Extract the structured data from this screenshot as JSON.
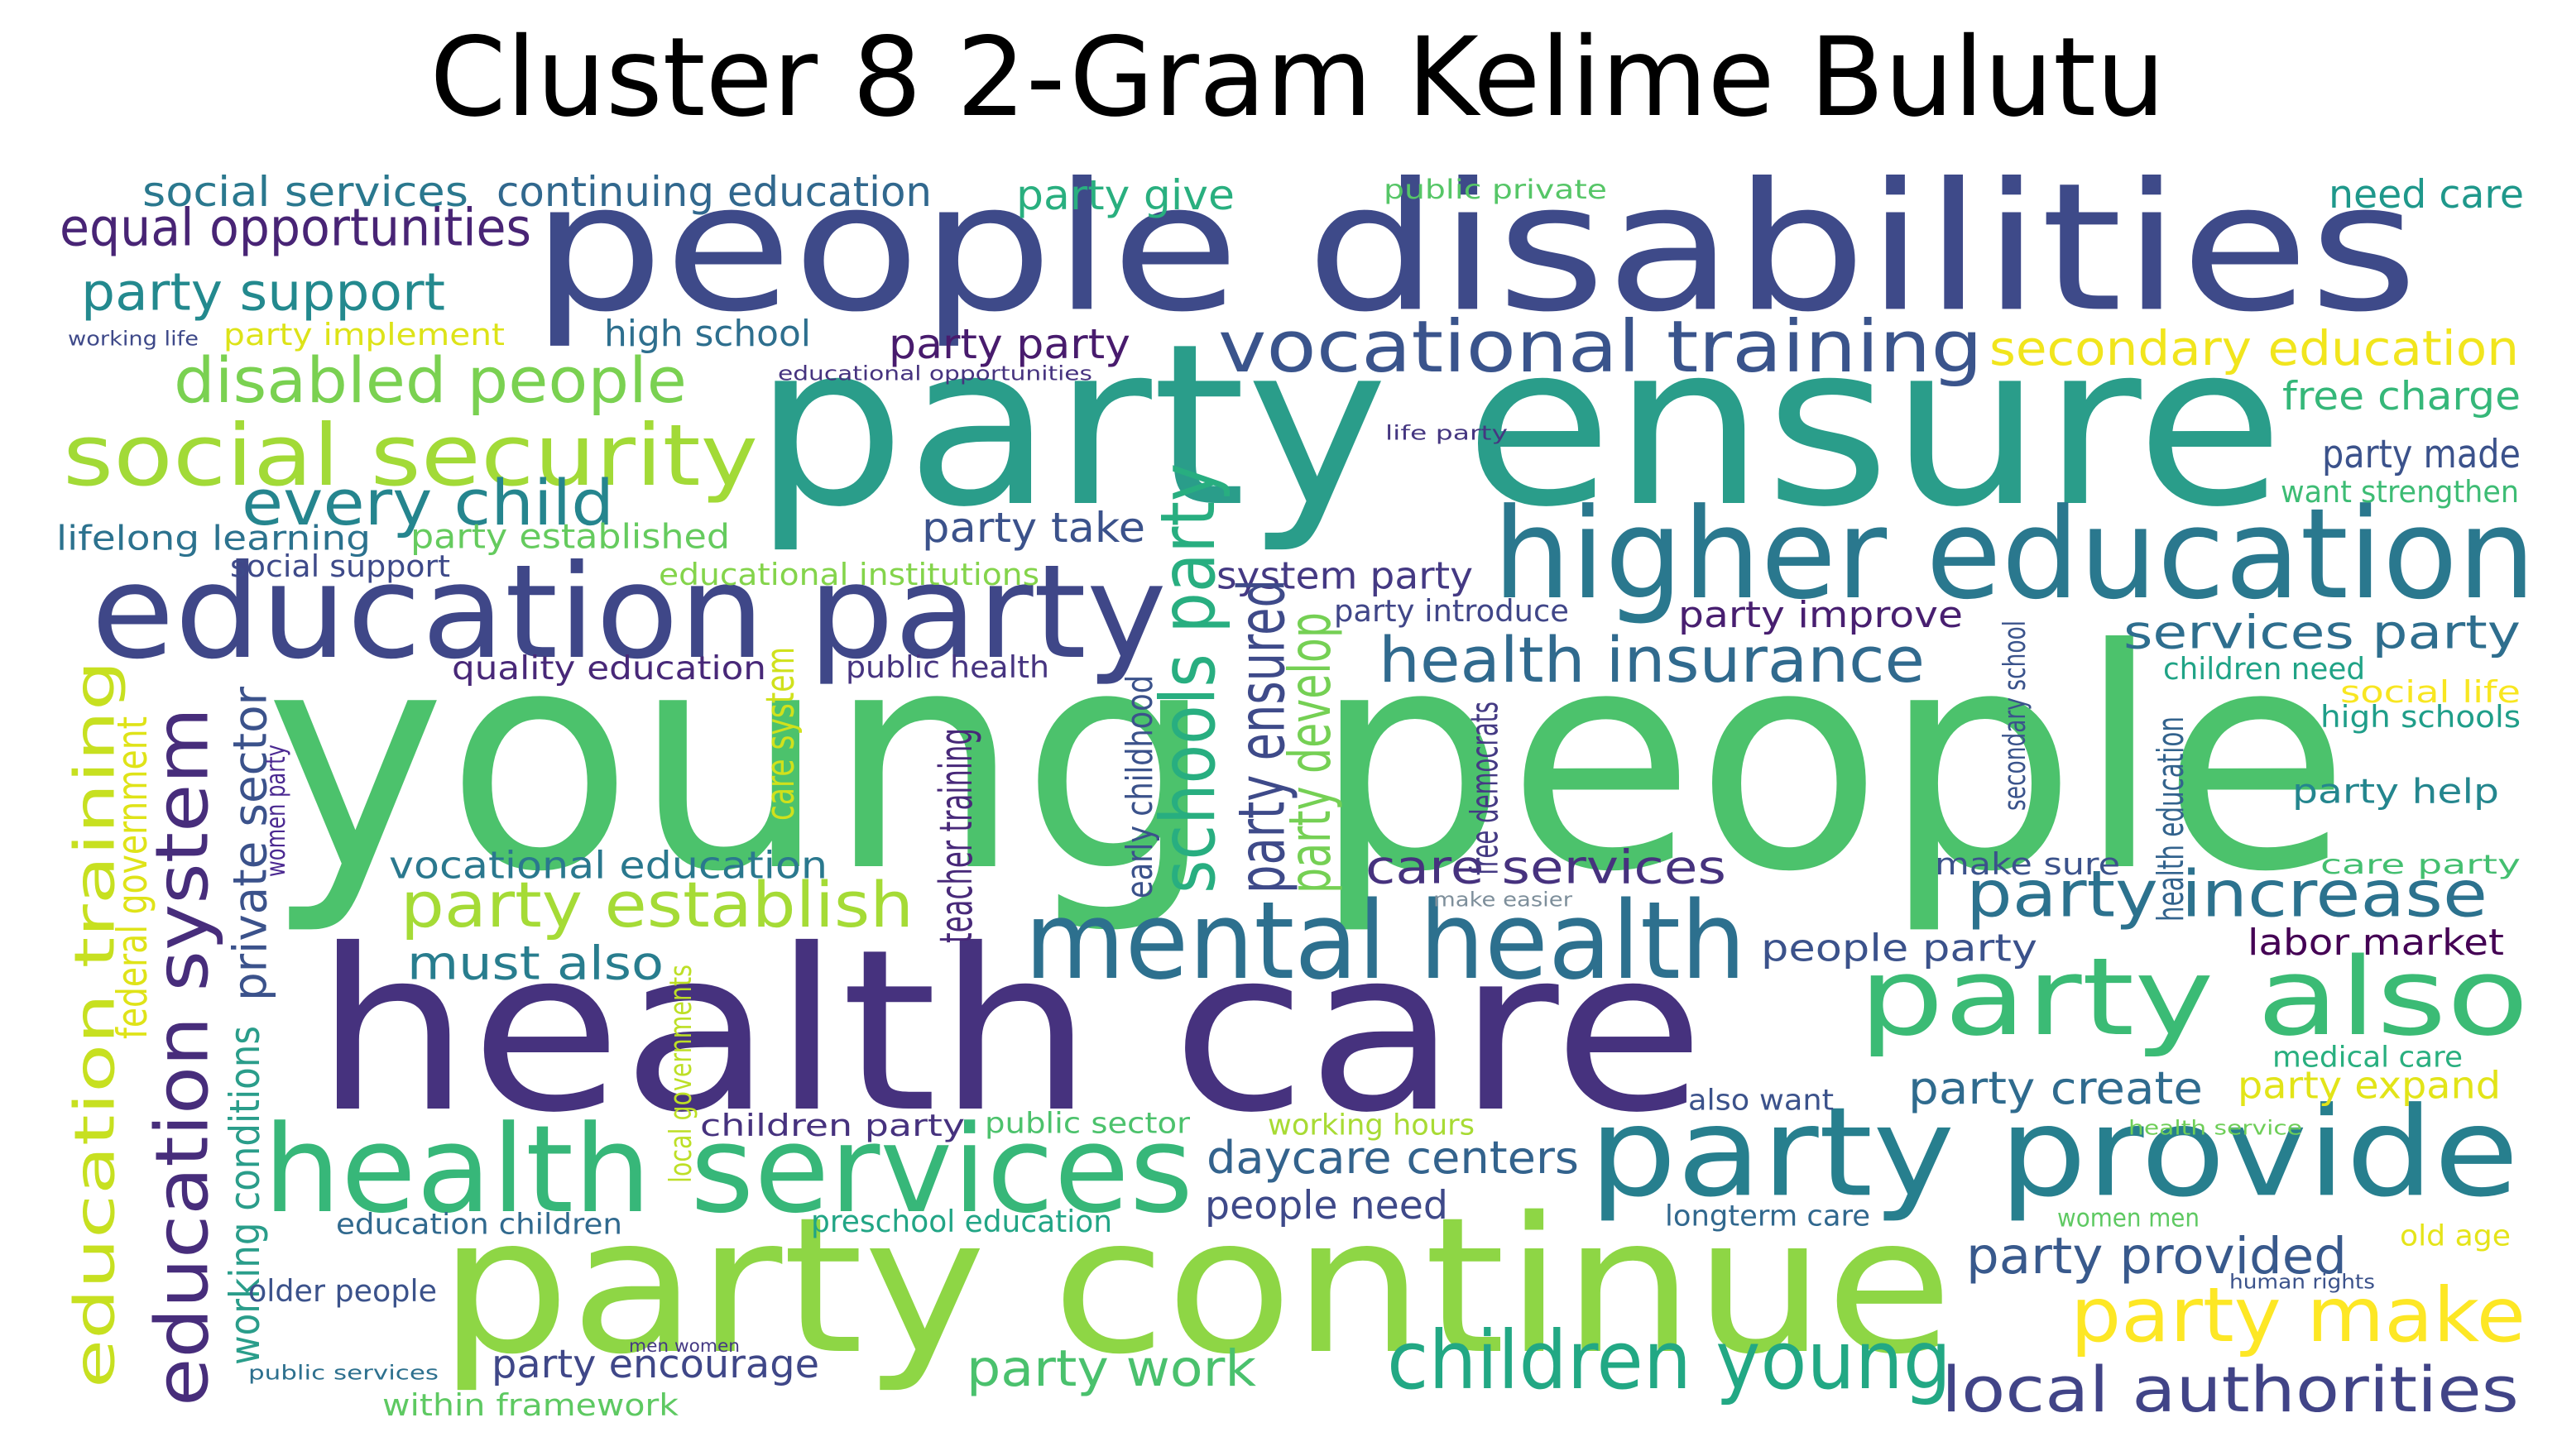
{
  "title": "Cluster 8 2-Gram Kelime Bulutu",
  "words": [
    {
      "text": "young people",
      "color": "#4cc26c"
    },
    {
      "text": "health care",
      "color": "#46327e"
    },
    {
      "text": "party ensure",
      "color": "#2a9d8a"
    },
    {
      "text": "party continue",
      "color": "#8ed645"
    },
    {
      "text": "people disabilities",
      "color": "#3e4a89"
    },
    {
      "text": "education party",
      "color": "#3f4788"
    },
    {
      "text": "party provide",
      "color": "#277f8e"
    },
    {
      "text": "health services",
      "color": "#37b779"
    },
    {
      "text": "higher education",
      "color": "#2a788e"
    },
    {
      "text": "mental health",
      "color": "#2d708e"
    },
    {
      "text": "party also",
      "color": "#3bbb75"
    },
    {
      "text": "education system",
      "color": "#472d7b"
    },
    {
      "text": "social security",
      "color": "#a2da37"
    },
    {
      "text": "education training",
      "color": "#c7e020"
    },
    {
      "text": "vocational training",
      "color": "#3a548c"
    },
    {
      "text": "children young",
      "color": "#22a884"
    },
    {
      "text": "party make",
      "color": "#fde725"
    },
    {
      "text": "health insurance",
      "color": "#306a8e"
    },
    {
      "text": "party increase",
      "color": "#2c728e"
    },
    {
      "text": "local authorities",
      "color": "#414487"
    },
    {
      "text": "disabled people",
      "color": "#7ad151"
    },
    {
      "text": "every child",
      "color": "#25858e"
    },
    {
      "text": "party establish",
      "color": "#a5db36"
    },
    {
      "text": "secondary education",
      "color": "#f1e51d"
    },
    {
      "text": "party support",
      "color": "#23898e"
    },
    {
      "text": "equal opportunities",
      "color": "#482475"
    },
    {
      "text": "social services",
      "color": "#2a788e"
    },
    {
      "text": "continuing education",
      "color": "#31688e"
    },
    {
      "text": "party give",
      "color": "#29af7f"
    },
    {
      "text": "need care",
      "color": "#1f988b"
    },
    {
      "text": "public private",
      "color": "#56c667"
    },
    {
      "text": "party party",
      "color": "#481b6d"
    },
    {
      "text": "high school",
      "color": "#2e6f8e"
    },
    {
      "text": "party implement",
      "color": "#dde318"
    },
    {
      "text": "working life",
      "color": "#3e4989"
    },
    {
      "text": "educational opportunities",
      "color": "#46337f"
    },
    {
      "text": "free charge",
      "color": "#35b779"
    },
    {
      "text": "life party",
      "color": "#453781"
    },
    {
      "text": "party made",
      "color": "#3b528b"
    },
    {
      "text": "want strengthen",
      "color": "#3dbc74"
    },
    {
      "text": "lifelong learning",
      "color": "#2c728e"
    },
    {
      "text": "party established",
      "color": "#65cb5e"
    },
    {
      "text": "party take",
      "color": "#3b528b"
    },
    {
      "text": "social support",
      "color": "#3e4a89"
    },
    {
      "text": "educational institutions",
      "color": "#84d44b"
    },
    {
      "text": "system party",
      "color": "#443983"
    },
    {
      "text": "party introduce",
      "color": "#404688"
    },
    {
      "text": "party improve",
      "color": "#481f70"
    },
    {
      "text": "services party",
      "color": "#2e6e8e"
    },
    {
      "text": "children need",
      "color": "#20a386"
    },
    {
      "text": "social life",
      "color": "#f8e621"
    },
    {
      "text": "high schools",
      "color": "#1f9e89"
    },
    {
      "text": "quality education",
      "color": "#482878"
    },
    {
      "text": "public health",
      "color": "#463480"
    },
    {
      "text": "schools party",
      "color": "#28ae80"
    },
    {
      "text": "party ensured",
      "color": "#3e4a89"
    },
    {
      "text": "party develop",
      "color": "#75d054"
    },
    {
      "text": "care system",
      "color": "#d0e11c"
    },
    {
      "text": "teacher training",
      "color": "#482979"
    },
    {
      "text": "early childhood",
      "color": "#3b528b"
    },
    {
      "text": "free democrats",
      "color": "#443a83"
    },
    {
      "text": "secondary school",
      "color": "#3a538b"
    },
    {
      "text": "health education",
      "color": "#33638d"
    },
    {
      "text": "party help",
      "color": "#24868e"
    },
    {
      "text": "private sector",
      "color": "#3b528b"
    },
    {
      "text": "federal government",
      "color": "#dfe318"
    },
    {
      "text": "women party",
      "color": "#4b2991"
    },
    {
      "text": "vocational education",
      "color": "#2a788e"
    },
    {
      "text": "care services",
      "color": "#46327e"
    },
    {
      "text": "make sure",
      "color": "#3b528b"
    },
    {
      "text": "care party",
      "color": "#44bf70"
    },
    {
      "text": "make easier",
      "color": "#7e8f9b"
    },
    {
      "text": "must also",
      "color": "#287d8e"
    },
    {
      "text": "people party",
      "color": "#3b528b"
    },
    {
      "text": "labor market",
      "color": "#440154"
    },
    {
      "text": "working conditions",
      "color": "#2a9d8a"
    },
    {
      "text": "local governments",
      "color": "#bddf26"
    },
    {
      "text": "medical care",
      "color": "#29af7f"
    },
    {
      "text": "party expand",
      "color": "#e2e418"
    },
    {
      "text": "party create",
      "color": "#2f6b8e"
    },
    {
      "text": "also want",
      "color": "#3b528b"
    },
    {
      "text": "children party",
      "color": "#46327e"
    },
    {
      "text": "public sector",
      "color": "#4cc26c"
    },
    {
      "text": "working hours",
      "color": "#a8db34"
    },
    {
      "text": "health service",
      "color": "#6ece58"
    },
    {
      "text": "daycare centers",
      "color": "#33638d"
    },
    {
      "text": "education children",
      "color": "#30698e"
    },
    {
      "text": "preschool education",
      "color": "#21a585"
    },
    {
      "text": "people need",
      "color": "#3e4989"
    },
    {
      "text": "longterm care",
      "color": "#31688e"
    },
    {
      "text": "women men",
      "color": "#5ec962"
    },
    {
      "text": "old age",
      "color": "#e5e419"
    },
    {
      "text": "party provided",
      "color": "#38598c"
    },
    {
      "text": "human rights",
      "color": "#3b528b"
    },
    {
      "text": "older people",
      "color": "#3b528b"
    },
    {
      "text": "men women",
      "color": "#443983"
    },
    {
      "text": "public services",
      "color": "#2d708e"
    },
    {
      "text": "party encourage",
      "color": "#3f4788"
    },
    {
      "text": "within framework",
      "color": "#5ec962"
    },
    {
      "text": "party work",
      "color": "#4ac16d"
    }
  ]
}
